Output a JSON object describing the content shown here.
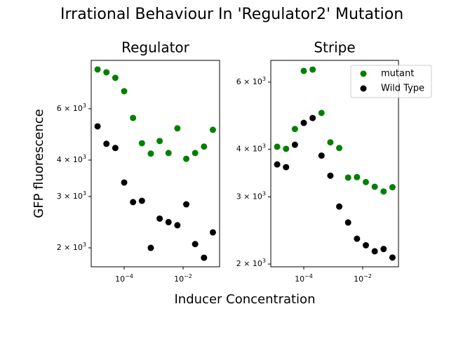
{
  "figure": {
    "title": "Irrational Behaviour In 'Regulator2' Mutation",
    "x_label": "Inducer Concentration",
    "y_label": "GFP fluorescence"
  },
  "chart_data": [
    {
      "type": "scatter",
      "title": "Regulator",
      "log_x": true,
      "log_y": true,
      "x": [
        1.25e-05,
        2.5e-05,
        5e-05,
        0.0001,
        0.0002,
        0.0004,
        0.0008,
        0.0016,
        0.0032,
        0.0064,
        0.0128,
        0.0256,
        0.0512,
        0.1024
      ],
      "series": [
        {
          "name": "mutant",
          "color": "#008000",
          "values": [
            8180,
            8000,
            7660,
            6890,
            5580,
            4570,
            4210,
            4650,
            4230,
            5140,
            4040,
            4230,
            4450,
            5080
          ]
        },
        {
          "name": "Wild Type",
          "color": "#000000",
          "values": [
            5220,
            4550,
            4400,
            3350,
            2870,
            2900,
            2000,
            2520,
            2450,
            2390,
            2820,
            2060,
            1850,
            2260
          ]
        }
      ],
      "xlim": [
        7.6e-06,
        0.173
      ],
      "ylim": [
        1722,
        8790
      ],
      "xticks": [
        {
          "value": 0.0001,
          "label": "10",
          "exponent": "−4"
        },
        {
          "value": 0.01,
          "label": "10",
          "exponent": "−2"
        }
      ],
      "yticks": [
        {
          "value": 2000,
          "label": "2 × 10",
          "exponent": "3"
        },
        {
          "value": 3000,
          "label": "3 × 10",
          "exponent": "3"
        },
        {
          "value": 4000,
          "label": "4 × 10",
          "exponent": "3"
        },
        {
          "value": 6000,
          "label": "6 × 10",
          "exponent": "3"
        }
      ]
    },
    {
      "type": "scatter",
      "title": "Stripe",
      "log_x": true,
      "log_y": true,
      "legend": "upper right",
      "x": [
        1.25e-05,
        2.5e-05,
        5e-05,
        0.0001,
        0.0002,
        0.0004,
        0.0008,
        0.0016,
        0.0032,
        0.0064,
        0.0128,
        0.0256,
        0.0512,
        0.1024
      ],
      "series": [
        {
          "name": "mutant",
          "color": "#008000",
          "values": [
            4060,
            4010,
            4520,
            6420,
            6470,
            4980,
            4170,
            4030,
            3370,
            3380,
            3280,
            3190,
            3100,
            3180
          ]
        },
        {
          "name": "Wild Type",
          "color": "#000000",
          "values": [
            3650,
            3590,
            4110,
            4690,
            4830,
            3850,
            3410,
            2830,
            2570,
            2330,
            2240,
            2160,
            2190,
            2080
          ]
        }
      ],
      "xlim": [
        7.6e-06,
        0.164
      ],
      "ylim": [
        1967,
        6840
      ],
      "xticks": [
        {
          "value": 0.0001,
          "label": "10",
          "exponent": "−4"
        },
        {
          "value": 0.01,
          "label": "10",
          "exponent": "−2"
        }
      ],
      "yticks": [
        {
          "value": 2000,
          "label": "2 × 10",
          "exponent": "3"
        },
        {
          "value": 3000,
          "label": "3 × 10",
          "exponent": "3"
        },
        {
          "value": 4000,
          "label": "4 × 10",
          "exponent": "3"
        },
        {
          "value": 6000,
          "label": "6 × 10",
          "exponent": "3"
        }
      ]
    }
  ]
}
